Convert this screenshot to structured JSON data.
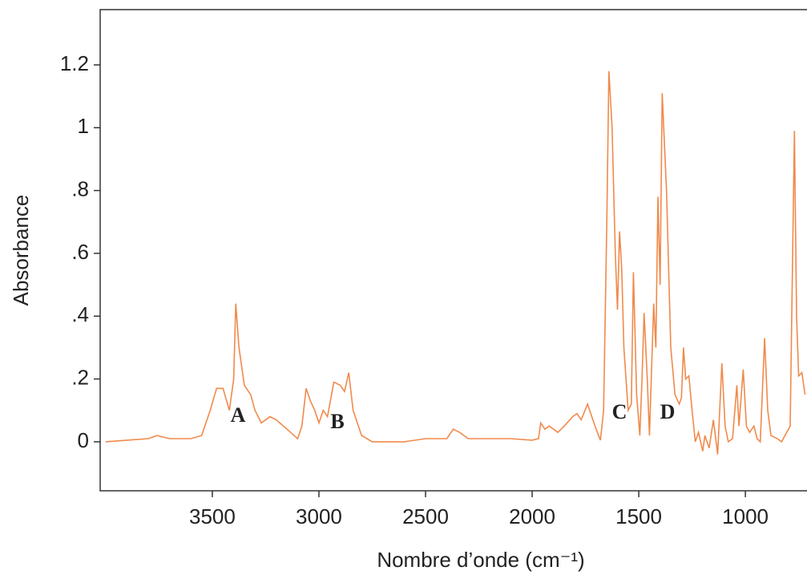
{
  "chart_data": {
    "type": "line",
    "y_label": "Absorbance",
    "x_label": "Nombre d’onde (cm⁻¹)",
    "xlim": [
      4026,
      711
    ],
    "ylim": [
      -0.156,
      1.376
    ],
    "xticks": [
      3500,
      3000,
      2500,
      2000,
      1500,
      1000
    ],
    "yticks": [
      0,
      {
        "value": 0.2,
        "label": ".2"
      },
      {
        "value": 0.4,
        "label": ".4"
      },
      {
        "value": 0.6,
        "label": ".6"
      },
      {
        "value": 0.8,
        "label": ".8"
      },
      1,
      1.2
    ],
    "annotations": [
      "A",
      "B",
      "C",
      "D"
    ],
    "x": [
      4000,
      3900,
      3800,
      3760,
      3700,
      3600,
      3550,
      3510,
      3480,
      3450,
      3420,
      3400,
      3390,
      3375,
      3350,
      3320,
      3300,
      3270,
      3230,
      3200,
      3150,
      3100,
      3080,
      3060,
      3040,
      3020,
      3000,
      2980,
      2960,
      2930,
      2900,
      2880,
      2860,
      2840,
      2800,
      2750,
      2700,
      2600,
      2500,
      2400,
      2370,
      2340,
      2300,
      2200,
      2100,
      2000,
      1970,
      1960,
      1940,
      1920,
      1900,
      1880,
      1850,
      1810,
      1790,
      1770,
      1740,
      1720,
      1700,
      1680,
      1665,
      1650,
      1640,
      1625,
      1610,
      1600,
      1590,
      1580,
      1570,
      1550,
      1535,
      1525,
      1510,
      1495,
      1485,
      1475,
      1460,
      1450,
      1430,
      1420,
      1410,
      1400,
      1390,
      1370,
      1350,
      1330,
      1310,
      1300,
      1290,
      1280,
      1265,
      1250,
      1235,
      1220,
      1200,
      1190,
      1170,
      1150,
      1130,
      1110,
      1095,
      1080,
      1060,
      1040,
      1030,
      1010,
      995,
      980,
      960,
      945,
      930,
      910,
      895,
      880,
      850,
      830,
      790,
      770,
      760,
      750,
      735,
      720
    ],
    "series": [
      {
        "color": "#f08a4b",
        "values": [
          0.0,
          0.005,
          0.01,
          0.02,
          0.01,
          0.01,
          0.02,
          0.1,
          0.17,
          0.17,
          0.1,
          0.2,
          0.44,
          0.3,
          0.18,
          0.15,
          0.1,
          0.06,
          0.08,
          0.07,
          0.04,
          0.01,
          0.05,
          0.17,
          0.13,
          0.1,
          0.06,
          0.1,
          0.08,
          0.19,
          0.18,
          0.16,
          0.22,
          0.1,
          0.02,
          0.0,
          0.0,
          0.0,
          0.01,
          0.01,
          0.04,
          0.03,
          0.01,
          0.01,
          0.01,
          0.005,
          0.01,
          0.06,
          0.04,
          0.05,
          0.04,
          0.03,
          0.05,
          0.08,
          0.09,
          0.07,
          0.12,
          0.08,
          0.04,
          0.005,
          0.1,
          0.7,
          1.18,
          1.0,
          0.6,
          0.42,
          0.67,
          0.55,
          0.3,
          0.1,
          0.12,
          0.54,
          0.15,
          0.02,
          0.2,
          0.41,
          0.2,
          0.02,
          0.44,
          0.3,
          0.78,
          0.5,
          1.11,
          0.8,
          0.3,
          0.15,
          0.12,
          0.14,
          0.3,
          0.2,
          0.21,
          0.1,
          0.0,
          0.03,
          -0.03,
          0.02,
          -0.02,
          0.07,
          -0.04,
          0.25,
          0.05,
          0.0,
          0.01,
          0.18,
          0.05,
          0.23,
          0.05,
          0.03,
          0.05,
          0.01,
          0.0,
          0.33,
          0.1,
          0.02,
          0.01,
          0.0,
          0.05,
          0.99,
          0.4,
          0.21,
          0.22,
          0.15
        ]
      }
    ]
  }
}
